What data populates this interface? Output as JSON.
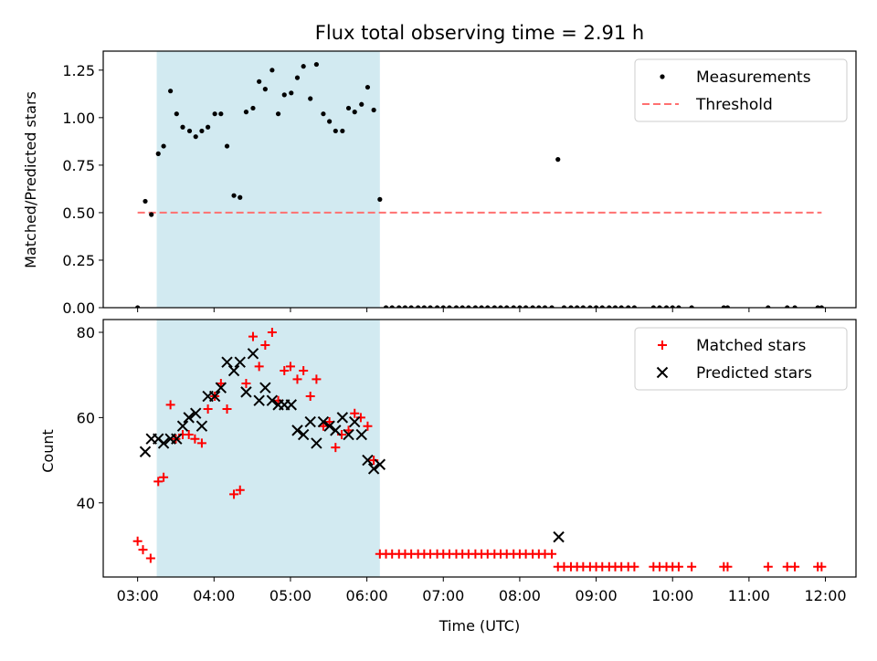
{
  "chart_data": {
    "title": "Flux total observing time = 2.91 h",
    "xlabel": "Time (UTC)",
    "xlim_hours": [
      2.55,
      12.4
    ],
    "x_ticks": [
      {
        "h": 3,
        "label": "03:00"
      },
      {
        "h": 4,
        "label": "04:00"
      },
      {
        "h": 5,
        "label": "05:00"
      },
      {
        "h": 6,
        "label": "06:00"
      },
      {
        "h": 7,
        "label": "07:00"
      },
      {
        "h": 8,
        "label": "08:00"
      },
      {
        "h": 9,
        "label": "09:00"
      },
      {
        "h": 10,
        "label": "10:00"
      },
      {
        "h": 11,
        "label": "11:00"
      },
      {
        "h": 12,
        "label": "12:00"
      }
    ],
    "shaded_interval_hours": [
      3.25,
      6.17
    ],
    "shade_color": "#add8e6",
    "top_panel": {
      "type": "scatter",
      "ylabel": "Matched/Predicted stars",
      "ylim": [
        0,
        1.35
      ],
      "y_ticks": [
        {
          "v": 0,
          "label": "0.00"
        },
        {
          "v": 0.25,
          "label": "0.25"
        },
        {
          "v": 0.5,
          "label": "0.50"
        },
        {
          "v": 0.75,
          "label": "0.75"
        },
        {
          "v": 1.0,
          "label": "1.00"
        },
        {
          "v": 1.25,
          "label": "1.25"
        }
      ],
      "threshold": {
        "value": 0.5,
        "x_range_hours": [
          3.0,
          11.95
        ],
        "color": "#ff7070"
      },
      "legend": [
        {
          "key": "measurements",
          "label": "Measurements"
        },
        {
          "key": "threshold",
          "label": "Threshold"
        }
      ],
      "measurements": [
        [
          3.0,
          0.0
        ],
        [
          3.1,
          0.56
        ],
        [
          3.18,
          0.49
        ],
        [
          3.27,
          0.81
        ],
        [
          3.34,
          0.85
        ],
        [
          3.43,
          1.14
        ],
        [
          3.51,
          1.02
        ],
        [
          3.59,
          0.95
        ],
        [
          3.68,
          0.93
        ],
        [
          3.76,
          0.9
        ],
        [
          3.84,
          0.93
        ],
        [
          3.92,
          0.95
        ],
        [
          4.01,
          1.02
        ],
        [
          4.09,
          1.02
        ],
        [
          4.17,
          0.85
        ],
        [
          4.26,
          0.59
        ],
        [
          4.34,
          0.58
        ],
        [
          4.42,
          1.03
        ],
        [
          4.51,
          1.05
        ],
        [
          4.59,
          1.19
        ],
        [
          4.67,
          1.15
        ],
        [
          4.76,
          1.25
        ],
        [
          4.84,
          1.02
        ],
        [
          4.92,
          1.12
        ],
        [
          5.01,
          1.13
        ],
        [
          5.09,
          1.21
        ],
        [
          5.17,
          1.27
        ],
        [
          5.26,
          1.1
        ],
        [
          5.34,
          1.28
        ],
        [
          5.43,
          1.02
        ],
        [
          5.51,
          0.98
        ],
        [
          5.59,
          0.93
        ],
        [
          5.68,
          0.93
        ],
        [
          5.76,
          1.05
        ],
        [
          5.84,
          1.03
        ],
        [
          5.93,
          1.07
        ],
        [
          6.01,
          1.16
        ],
        [
          6.09,
          1.04
        ],
        [
          6.17,
          0.57
        ],
        [
          8.5,
          0.78
        ],
        [
          6.25,
          0.0
        ],
        [
          6.33,
          0.0
        ],
        [
          6.42,
          0.0
        ],
        [
          6.5,
          0.0
        ],
        [
          6.58,
          0.0
        ],
        [
          6.67,
          0.0
        ],
        [
          6.75,
          0.0
        ],
        [
          6.83,
          0.0
        ],
        [
          6.92,
          0.0
        ],
        [
          7.0,
          0.0
        ],
        [
          7.08,
          0.0
        ],
        [
          7.17,
          0.0
        ],
        [
          7.25,
          0.0
        ],
        [
          7.33,
          0.0
        ],
        [
          7.42,
          0.0
        ],
        [
          7.5,
          0.0
        ],
        [
          7.58,
          0.0
        ],
        [
          7.67,
          0.0
        ],
        [
          7.75,
          0.0
        ],
        [
          7.83,
          0.0
        ],
        [
          7.92,
          0.0
        ],
        [
          8.0,
          0.0
        ],
        [
          8.08,
          0.0
        ],
        [
          8.17,
          0.0
        ],
        [
          8.25,
          0.0
        ],
        [
          8.33,
          0.0
        ],
        [
          8.42,
          0.0
        ],
        [
          8.58,
          0.0
        ],
        [
          8.67,
          0.0
        ],
        [
          8.75,
          0.0
        ],
        [
          8.83,
          0.0
        ],
        [
          8.92,
          0.0
        ],
        [
          9.0,
          0.0
        ],
        [
          9.08,
          0.0
        ],
        [
          9.17,
          0.0
        ],
        [
          9.25,
          0.0
        ],
        [
          9.33,
          0.0
        ],
        [
          9.42,
          0.0
        ],
        [
          9.5,
          0.0
        ],
        [
          9.75,
          0.0
        ],
        [
          9.83,
          0.0
        ],
        [
          9.92,
          0.0
        ],
        [
          10.0,
          0.0
        ],
        [
          10.08,
          0.0
        ],
        [
          10.25,
          0.0
        ],
        [
          10.67,
          0.0
        ],
        [
          10.72,
          0.0
        ],
        [
          11.25,
          0.0
        ],
        [
          11.5,
          0.0
        ],
        [
          11.6,
          0.0
        ],
        [
          11.9,
          0.0
        ],
        [
          11.95,
          0.0
        ]
      ]
    },
    "bottom_panel": {
      "type": "scatter",
      "ylabel": "Count",
      "ylim": [
        22.6,
        83
      ],
      "y_ticks": [
        {
          "v": 40,
          "label": "40"
        },
        {
          "v": 60,
          "label": "60"
        },
        {
          "v": 80,
          "label": "80"
        }
      ],
      "legend": [
        {
          "key": "matched",
          "label": "Matched stars"
        },
        {
          "key": "predicted",
          "label": "Predicted stars"
        }
      ],
      "matched_color": "#ff0000",
      "predicted_color": "#000000",
      "matched": [
        [
          3.0,
          31
        ],
        [
          3.07,
          29
        ],
        [
          3.17,
          27
        ],
        [
          3.27,
          45
        ],
        [
          3.34,
          46
        ],
        [
          3.43,
          63
        ],
        [
          3.5,
          55
        ],
        [
          3.59,
          56
        ],
        [
          3.67,
          56
        ],
        [
          3.75,
          55
        ],
        [
          3.84,
          54
        ],
        [
          3.92,
          62
        ],
        [
          4.01,
          65
        ],
        [
          4.09,
          68
        ],
        [
          4.17,
          62
        ],
        [
          4.26,
          42
        ],
        [
          4.34,
          43
        ],
        [
          4.42,
          68
        ],
        [
          4.51,
          79
        ],
        [
          4.59,
          72
        ],
        [
          4.67,
          77
        ],
        [
          4.76,
          80
        ],
        [
          4.84,
          64
        ],
        [
          4.92,
          71
        ],
        [
          5.0,
          72
        ],
        [
          5.09,
          69
        ],
        [
          5.17,
          71
        ],
        [
          5.26,
          65
        ],
        [
          5.34,
          69
        ],
        [
          5.43,
          58
        ],
        [
          5.51,
          59
        ],
        [
          5.59,
          53
        ],
        [
          5.67,
          56
        ],
        [
          5.76,
          57
        ],
        [
          5.84,
          61
        ],
        [
          5.92,
          60
        ],
        [
          6.01,
          58
        ],
        [
          6.09,
          50
        ],
        [
          6.17,
          28
        ],
        [
          6.25,
          28
        ],
        [
          6.33,
          28
        ],
        [
          6.42,
          28
        ],
        [
          6.5,
          28
        ],
        [
          6.58,
          28
        ],
        [
          6.67,
          28
        ],
        [
          6.75,
          28
        ],
        [
          6.83,
          28
        ],
        [
          6.92,
          28
        ],
        [
          7.0,
          28
        ],
        [
          7.08,
          28
        ],
        [
          7.17,
          28
        ],
        [
          7.25,
          28
        ],
        [
          7.33,
          28
        ],
        [
          7.42,
          28
        ],
        [
          7.5,
          28
        ],
        [
          7.58,
          28
        ],
        [
          7.67,
          28
        ],
        [
          7.75,
          28
        ],
        [
          7.83,
          28
        ],
        [
          7.92,
          28
        ],
        [
          8.0,
          28
        ],
        [
          8.08,
          28
        ],
        [
          8.17,
          28
        ],
        [
          8.25,
          28
        ],
        [
          8.33,
          28
        ],
        [
          8.42,
          28
        ],
        [
          8.5,
          25
        ],
        [
          8.58,
          25
        ],
        [
          8.67,
          25
        ],
        [
          8.75,
          25
        ],
        [
          8.83,
          25
        ],
        [
          8.92,
          25
        ],
        [
          9.0,
          25
        ],
        [
          9.08,
          25
        ],
        [
          9.17,
          25
        ],
        [
          9.25,
          25
        ],
        [
          9.33,
          25
        ],
        [
          9.42,
          25
        ],
        [
          9.5,
          25
        ],
        [
          9.75,
          25
        ],
        [
          9.83,
          25
        ],
        [
          9.92,
          25
        ],
        [
          10.0,
          25
        ],
        [
          10.08,
          25
        ],
        [
          10.25,
          25
        ],
        [
          10.67,
          25
        ],
        [
          10.72,
          25
        ],
        [
          11.25,
          25
        ],
        [
          11.5,
          25
        ],
        [
          11.6,
          25
        ],
        [
          11.9,
          25
        ],
        [
          11.95,
          25
        ]
      ],
      "predicted": [
        [
          3.1,
          52
        ],
        [
          3.18,
          55
        ],
        [
          3.27,
          55
        ],
        [
          3.34,
          54
        ],
        [
          3.43,
          55
        ],
        [
          3.51,
          55
        ],
        [
          3.59,
          58
        ],
        [
          3.67,
          60
        ],
        [
          3.76,
          61
        ],
        [
          3.84,
          58
        ],
        [
          3.92,
          65
        ],
        [
          4.01,
          65
        ],
        [
          4.09,
          67
        ],
        [
          4.17,
          73
        ],
        [
          4.26,
          71
        ],
        [
          4.34,
          73
        ],
        [
          4.42,
          66
        ],
        [
          4.51,
          75
        ],
        [
          4.59,
          64
        ],
        [
          4.67,
          67
        ],
        [
          4.76,
          64
        ],
        [
          4.84,
          63
        ],
        [
          4.92,
          63
        ],
        [
          5.01,
          63
        ],
        [
          5.09,
          57
        ],
        [
          5.17,
          56
        ],
        [
          5.26,
          59
        ],
        [
          5.34,
          54
        ],
        [
          5.43,
          59
        ],
        [
          5.51,
          58
        ],
        [
          5.59,
          57
        ],
        [
          5.68,
          60
        ],
        [
          5.76,
          56
        ],
        [
          5.84,
          59
        ],
        [
          5.93,
          56
        ],
        [
          6.01,
          50
        ],
        [
          6.09,
          48
        ],
        [
          6.17,
          49
        ],
        [
          8.51,
          32
        ]
      ]
    }
  }
}
